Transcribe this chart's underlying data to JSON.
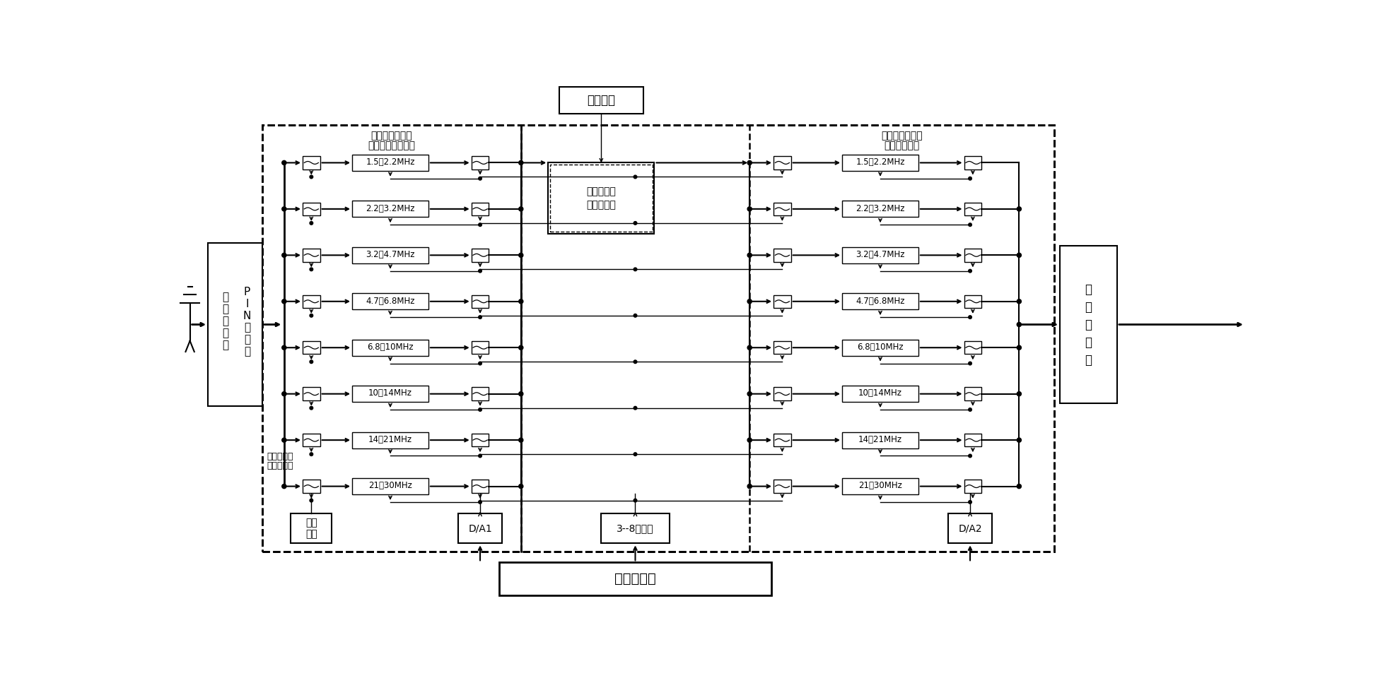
{
  "bg_color": "#ffffff",
  "line_color": "#000000",
  "freq_bands": [
    "1.5～2.2MHz",
    "2.2～3.2MHz",
    "3.2～4.7MHz",
    "4.7～6.8MHz",
    "6.8～10MHz",
    "10～14MHz",
    "14～21MHz",
    "21～30MHz"
  ],
  "gain_control_label": "增益控制",
  "amp_line1": "增益控制低",
  "amp_line2": "噪声放大器",
  "filter_group1_line1": "第一数控电调谐",
  "filter_group1_line2": "预选跟踪滤波器组",
  "filter_group2_line1": "第二数控电调谐",
  "filter_group2_line2": "跟踪滤波器组",
  "pin_col1": [
    "电",
    "调",
    "衰",
    "减",
    "器"
  ],
  "pin_col2": [
    "P",
    "I",
    "N",
    "二",
    "极",
    "管"
  ],
  "front_end_line1": "前端保护与",
  "front_end_line2": "可控衰减器",
  "mixer_text": "第\n一\n混\n频\n器",
  "decoder_label": "3--8译码器",
  "da1_label": "D/A1",
  "da2_label": "D/A2",
  "preselect_line1": "预选",
  "preselect_line2": "控制",
  "controller_label": "控　制　器"
}
